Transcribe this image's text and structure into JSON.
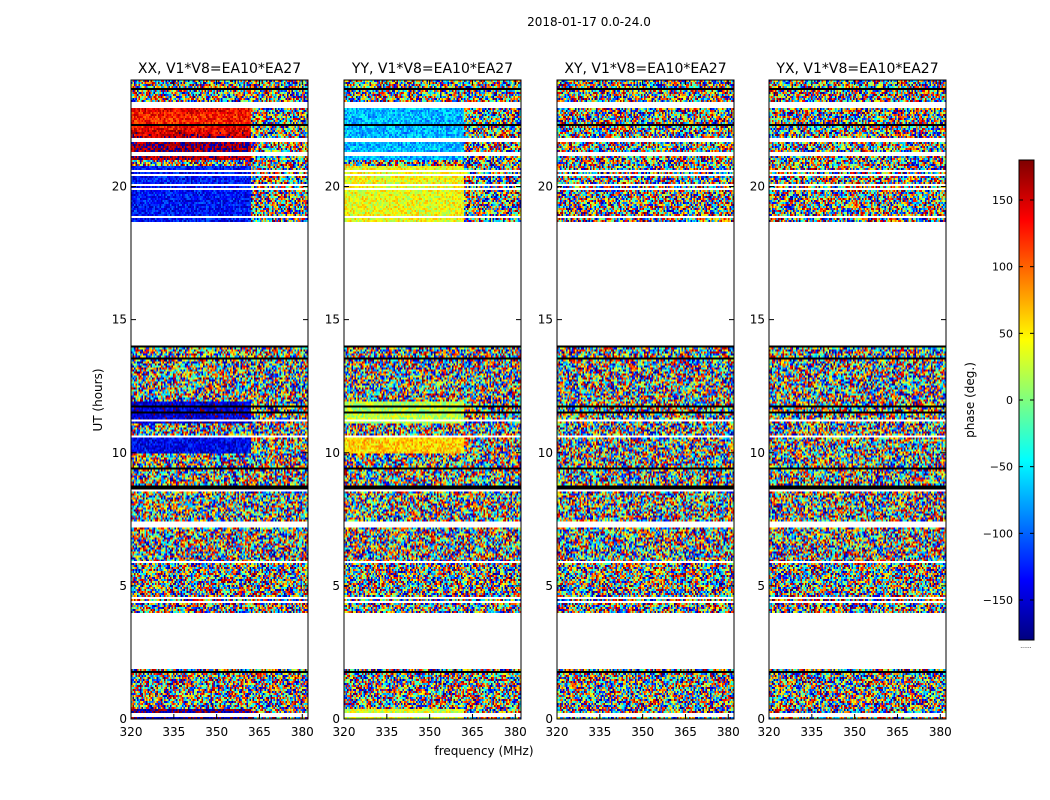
{
  "chart_data": {
    "type": "heatmap",
    "suptitle": "2018-01-17 0.0-24.0",
    "xlabel": "frequency (MHz)",
    "ylabel": "UT (hours)",
    "colorbar_label": "phase (deg.)",
    "colorbar_below": "......",
    "colormap": "jet",
    "clim": [
      -180,
      180
    ],
    "xlim": [
      320,
      382
    ],
    "ylim": [
      0,
      24
    ],
    "x_ticks": [
      320,
      335,
      350,
      365,
      380
    ],
    "y_ticks": [
      0,
      5,
      10,
      15,
      20
    ],
    "colorbar_ticks": [
      -150,
      -100,
      -50,
      0,
      50,
      100,
      150
    ],
    "data_time_ranges_hours": [
      [
        0.0,
        1.9
      ],
      [
        4.0,
        14.0
      ],
      [
        18.7,
        24.0
      ]
    ],
    "panels": [
      {
        "title": "XX, V1*V8=EA10*EA27",
        "mode": "xx"
      },
      {
        "title": "YY, V1*V8=EA10*EA27",
        "mode": "yy"
      },
      {
        "title": "XY, V1*V8=EA10*EA27",
        "mode": "noise"
      },
      {
        "title": "YX, V1*V8=EA10*EA27",
        "mode": "noise"
      }
    ]
  },
  "colors": {
    "jet_stops": [
      "#00007f",
      "#0000ff",
      "#007fff",
      "#00ffff",
      "#7fff7f",
      "#ffff00",
      "#ff7f00",
      "#ff0000",
      "#7f0000"
    ],
    "axis": "#000000",
    "background": "#ffffff"
  }
}
